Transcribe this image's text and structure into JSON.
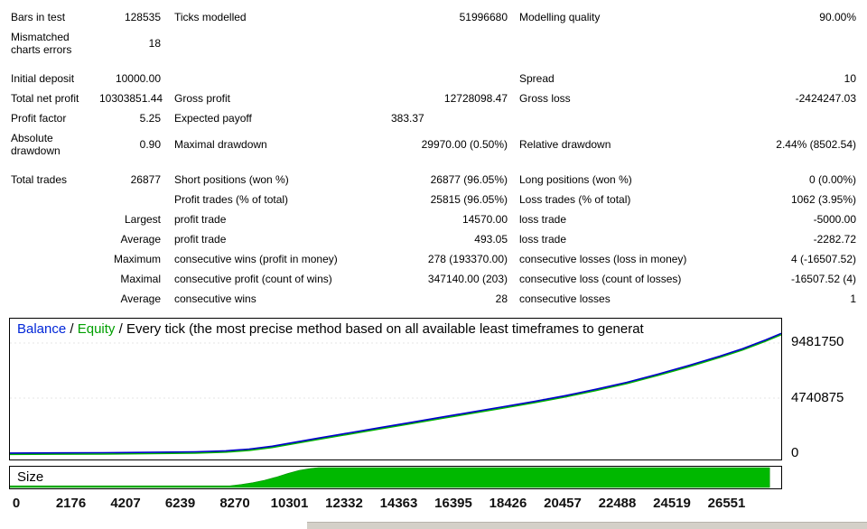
{
  "stats_table": {
    "rows": [
      {
        "cells": [
          "Bars in test",
          "128535",
          "Ticks modelled",
          "51996680",
          "Modelling quality",
          "90.00%"
        ]
      },
      {
        "cells": [
          "Mismatched charts errors",
          "18",
          "",
          "",
          "",
          ""
        ],
        "gap_after": true
      },
      {
        "cells": [
          "Initial deposit",
          "10000.00",
          "",
          "",
          "Spread",
          "10"
        ]
      },
      {
        "cells": [
          "Total net profit",
          "10303851.44",
          "Gross profit",
          "12728098.47",
          "Gross loss",
          "-2424247.03"
        ]
      },
      {
        "cells": [
          "Profit factor",
          "5.25",
          "Expected payoff",
          "383.37",
          "",
          ""
        ],
        "c4_narrow": true
      },
      {
        "cells": [
          "Absolute drawdown",
          "0.90",
          "Maximal drawdown",
          "29970.00 (0.50%)",
          "Relative drawdown",
          "2.44% (8502.54)"
        ],
        "gap_after": true
      },
      {
        "cells": [
          "Total trades",
          "26877",
          "Short positions (won %)",
          "26877 (96.05%)",
          "Long positions (won %)",
          "0 (0.00%)"
        ]
      },
      {
        "cells": [
          "",
          "",
          "Profit trades (% of total)",
          "25815 (96.05%)",
          "Loss trades (% of total)",
          "1062 (3.95%)"
        ]
      },
      {
        "cells": [
          "",
          "Largest",
          "profit trade",
          "14570.00",
          "loss trade",
          "-5000.00"
        ]
      },
      {
        "cells": [
          "",
          "Average",
          "profit trade",
          "493.05",
          "loss trade",
          "-2282.72"
        ]
      },
      {
        "cells": [
          "",
          "Maximum",
          "consecutive wins (profit in money)",
          "278 (193370.00)",
          "consecutive losses (loss in money)",
          "4 (-16507.52)"
        ]
      },
      {
        "cells": [
          "",
          "Maximal",
          "consecutive profit (count of wins)",
          "347140.00 (203)",
          "consecutive loss (count of losses)",
          "-16507.52 (4)"
        ]
      },
      {
        "cells": [
          "",
          "Average",
          "consecutive wins",
          "28",
          "consecutive losses",
          "1"
        ]
      }
    ]
  },
  "chart_data": {
    "type": "line",
    "legend": [
      {
        "label": "Balance",
        "color": "#0026d8"
      },
      {
        "label": "Equity",
        "color": "#00a000"
      }
    ],
    "separator": " / ",
    "subtitle": "Every tick (the most precise method based on all available least timeframes to generat",
    "y_ticks": [
      "9481750",
      "4740875",
      "0"
    ],
    "x_ticks": [
      "0",
      "2176",
      "4207",
      "6239",
      "8270",
      "10301",
      "12332",
      "14363",
      "16395",
      "18426",
      "20457",
      "22488",
      "24519",
      "26551"
    ],
    "ylim": [
      0,
      11500000
    ],
    "grid": "faint horizontal at y-ticks",
    "legend_position": "top-left inline header",
    "series": [
      {
        "name": "Balance",
        "color": "#0000cc",
        "x_unit": "fraction of plot width (0 = trade 0, 1 = right edge ~ trade 26877)",
        "points": [
          [
            0.0,
            10000
          ],
          [
            0.06,
            20000
          ],
          [
            0.12,
            40000
          ],
          [
            0.18,
            70000
          ],
          [
            0.24,
            120000
          ],
          [
            0.28,
            200000
          ],
          [
            0.31,
            350000
          ],
          [
            0.34,
            600000
          ],
          [
            0.37,
            950000
          ],
          [
            0.4,
            1300000
          ],
          [
            0.44,
            1750000
          ],
          [
            0.48,
            2200000
          ],
          [
            0.52,
            2650000
          ],
          [
            0.56,
            3100000
          ],
          [
            0.6,
            3550000
          ],
          [
            0.64,
            4000000
          ],
          [
            0.68,
            4450000
          ],
          [
            0.72,
            4950000
          ],
          [
            0.76,
            5500000
          ],
          [
            0.8,
            6100000
          ],
          [
            0.84,
            6800000
          ],
          [
            0.88,
            7550000
          ],
          [
            0.92,
            8350000
          ],
          [
            0.95,
            9000000
          ],
          [
            0.98,
            9750000
          ],
          [
            1.0,
            10313851
          ]
        ]
      },
      {
        "name": "Equity",
        "color": "#00b400",
        "tracks_balance": true
      }
    ],
    "size_panel": {
      "label": "Size",
      "fill_color": "#00b800",
      "profile_xfrac_heightfrac": [
        [
          0,
          0.08
        ],
        [
          0.285,
          0.08
        ],
        [
          0.3,
          0.15
        ],
        [
          0.315,
          0.24
        ],
        [
          0.33,
          0.36
        ],
        [
          0.345,
          0.52
        ],
        [
          0.36,
          0.7
        ],
        [
          0.375,
          0.86
        ],
        [
          0.39,
          0.96
        ],
        [
          0.4,
          1.0
        ],
        [
          0.985,
          1.0
        ]
      ]
    }
  }
}
